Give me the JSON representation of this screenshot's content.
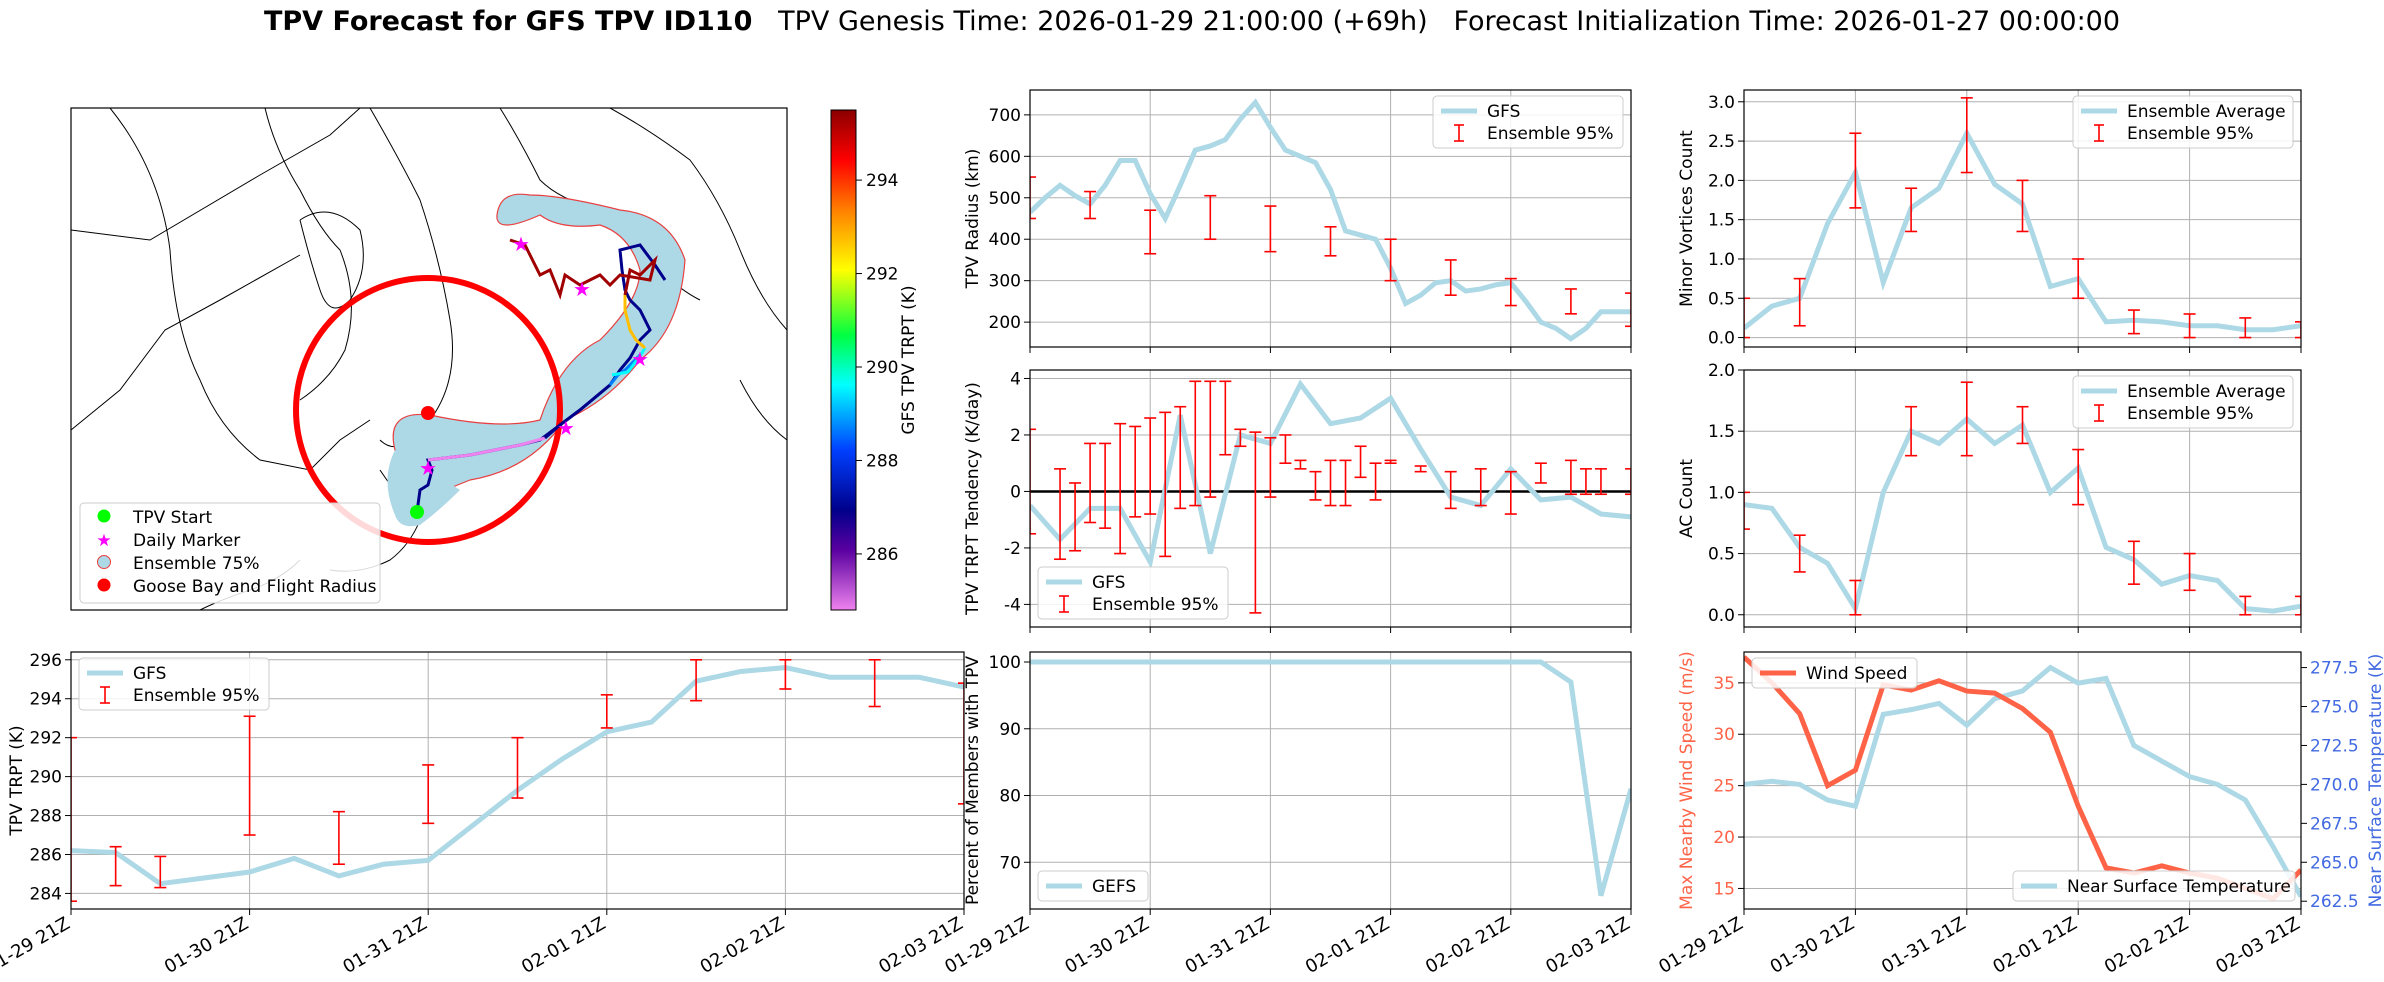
{
  "header": {
    "title_bold": "TPV Forecast for GFS TPV ID110",
    "genesis": "TPV Genesis Time: 2026-01-29 21:00:00 (+69h)",
    "init": "Forecast Initialization Time: 2026-01-27 00:00:00"
  },
  "colors": {
    "gfs": "#add8e6",
    "err": "#ff0000",
    "wind": "#ff6347",
    "temp": "#4169e1",
    "shade": "#add8e6"
  },
  "map": {
    "legend": [
      "TPV Start",
      "Daily Marker",
      "Ensemble 75%",
      "Goose Bay and Flight Radius"
    ],
    "colorbar": {
      "label": "GFS TPV TRPT (K)",
      "range": [
        284.8,
        295.5
      ],
      "ticks": [
        286,
        288,
        290,
        292,
        294
      ]
    }
  },
  "xticks": [
    "01-29 21Z",
    "01-30 21Z",
    "01-31 21Z",
    "02-01 21Z",
    "02-02 21Z",
    "02-03 21Z"
  ],
  "chart_data": [
    {
      "id": "radius",
      "type": "line",
      "ylabel": "TPV Radius (km)",
      "ylim": [
        140,
        760
      ],
      "yticks": [
        200,
        300,
        400,
        500,
        600,
        700
      ],
      "series_name": "GFS",
      "err_name": "Ensemble 95%",
      "x": [
        0,
        0.125,
        0.25,
        0.375,
        0.5,
        0.625,
        0.75,
        0.875,
        1,
        1.125,
        1.25,
        1.375,
        1.5,
        1.625,
        1.75,
        1.875,
        2,
        2.125,
        2.25,
        2.375,
        2.5,
        2.625,
        2.75,
        2.875,
        3,
        3.125,
        3.25,
        3.375,
        3.5,
        3.625,
        3.75,
        3.875,
        4,
        4.125,
        4.25,
        4.375,
        4.5,
        4.625,
        4.75,
        4.875,
        5
      ],
      "values": [
        465,
        500,
        530,
        505,
        485,
        530,
        590,
        590,
        510,
        450,
        530,
        615,
        625,
        640,
        690,
        730,
        670,
        615,
        600,
        585,
        520,
        420,
        410,
        400,
        330,
        245,
        265,
        295,
        300,
        275,
        280,
        290,
        295,
        250,
        200,
        185,
        160,
        185,
        225,
        225,
        225
      ],
      "err_x": [
        0,
        0.5,
        1,
        1.5,
        2,
        2.5,
        3,
        3.5,
        4,
        4.5,
        5
      ],
      "err_low": [
        450,
        450,
        365,
        400,
        370,
        360,
        300,
        265,
        240,
        220,
        190
      ],
      "err_high": [
        550,
        515,
        470,
        505,
        480,
        430,
        400,
        350,
        305,
        280,
        270
      ],
      "hline": null,
      "legend": "upper right"
    },
    {
      "id": "tendency",
      "type": "line",
      "ylabel": "TPV TRPT Tendency (K/day)",
      "ylim": [
        -4.8,
        4.3
      ],
      "yticks": [
        -4,
        -2,
        0,
        2,
        4
      ],
      "series_name": "GFS",
      "err_name": "Ensemble 95%",
      "x": [
        0,
        0.25,
        0.5,
        0.75,
        1,
        1.25,
        1.5,
        1.75,
        2,
        2.25,
        2.5,
        2.75,
        3,
        3.25,
        3.5,
        3.75,
        4,
        4.25,
        4.5,
        4.75,
        5
      ],
      "values": [
        -0.5,
        -1.7,
        -0.6,
        -0.6,
        -2.5,
        2.7,
        -2.2,
        2.0,
        1.7,
        3.8,
        2.4,
        2.6,
        3.3,
        1.5,
        -0.2,
        -0.5,
        0.8,
        -0.3,
        -0.2,
        -0.8,
        -0.9
      ],
      "err_x": [
        0,
        0.25,
        0.375,
        0.5,
        0.625,
        0.75,
        0.875,
        1,
        1.125,
        1.25,
        1.375,
        1.5,
        1.625,
        1.75,
        1.875,
        2,
        2.125,
        2.25,
        2.375,
        2.5,
        2.625,
        2.75,
        2.875,
        3,
        3.25,
        3.5,
        3.75,
        4,
        4.25,
        4.5,
        4.625,
        4.75,
        5
      ],
      "err_low": [
        -1.5,
        -2.4,
        -2.1,
        -1.1,
        -1.3,
        -2.2,
        -0.9,
        -0.8,
        -2.3,
        -0.6,
        -0.5,
        -0.2,
        1.3,
        1.6,
        -4.3,
        -0.2,
        1.0,
        0.8,
        -0.3,
        -0.5,
        -0.5,
        0.5,
        -0.3,
        1.0,
        0.7,
        -0.6,
        -0.5,
        -0.8,
        0.3,
        -0.1,
        -0.1,
        -0.1,
        -0.1
      ],
      "err_high": [
        2.2,
        0.8,
        0.3,
        1.7,
        1.7,
        2.4,
        2.3,
        2.6,
        2.8,
        3.0,
        3.9,
        3.9,
        3.9,
        2.2,
        2.1,
        1.9,
        2.0,
        1.1,
        0.7,
        1.1,
        1.1,
        1.6,
        1.0,
        1.1,
        0.9,
        0.7,
        0.8,
        0.7,
        1.0,
        1.1,
        0.8,
        0.8,
        0.8
      ],
      "hline": 0,
      "legend": "lower left"
    },
    {
      "id": "trpt",
      "type": "line",
      "ylabel": "TPV TRPT (K)",
      "ylim": [
        283.2,
        296.4
      ],
      "yticks": [
        284,
        286,
        288,
        290,
        292,
        294,
        296
      ],
      "series_name": "GFS",
      "err_name": "Ensemble 95%",
      "x": [
        0,
        0.25,
        0.5,
        0.75,
        1,
        1.25,
        1.5,
        1.75,
        2,
        2.25,
        2.5,
        2.75,
        3,
        3.25,
        3.5,
        3.75,
        4,
        4.25,
        4.5,
        4.75,
        5
      ],
      "values": [
        286.2,
        286.1,
        284.5,
        284.8,
        285.1,
        285.8,
        284.9,
        285.5,
        285.7,
        287.5,
        289.3,
        290.9,
        292.3,
        292.8,
        294.9,
        295.4,
        295.6,
        295.1,
        295.1,
        295.1,
        294.6
      ],
      "err_x": [
        0,
        0.25,
        0.5,
        1,
        1.5,
        2,
        2.5,
        3,
        3.5,
        4,
        4.5,
        5
      ],
      "err_low": [
        283.6,
        284.4,
        284.3,
        287.0,
        285.5,
        287.6,
        288.9,
        292.5,
        293.9,
        294.5,
        293.6,
        288.6
      ],
      "err_high": [
        292.0,
        286.4,
        285.9,
        293.1,
        288.2,
        290.6,
        292.0,
        294.2,
        296.0,
        296.0,
        296.0,
        294.8
      ],
      "hline": null,
      "legend": "upper left"
    },
    {
      "id": "members",
      "type": "line",
      "ylabel": "Percent of Members with TPV",
      "ylim": [
        63,
        101.5
      ],
      "yticks": [
        70,
        80,
        90,
        100
      ],
      "series_name": "GEFS",
      "err_name": null,
      "x": [
        0,
        0.5,
        1,
        1.5,
        2,
        2.5,
        3,
        3.5,
        3.875,
        4,
        4.25,
        4.5,
        4.75,
        5
      ],
      "values": [
        100,
        100,
        100,
        100,
        100,
        100,
        100,
        100,
        100,
        100,
        100,
        97,
        65,
        81
      ],
      "hline": null,
      "legend": "lower left"
    },
    {
      "id": "minor",
      "type": "line",
      "ylabel": "Minor Vortices Count",
      "ylim": [
        -0.12,
        3.15
      ],
      "yticks": [
        0.0,
        0.5,
        1.0,
        1.5,
        2.0,
        2.5,
        3.0
      ],
      "series_name": "Ensemble Average",
      "err_name": "Ensemble 95%",
      "x": [
        0,
        0.25,
        0.5,
        0.75,
        1,
        1.25,
        1.5,
        1.75,
        2,
        2.25,
        2.5,
        2.75,
        3,
        3.25,
        3.5,
        3.75,
        4,
        4.25,
        4.5,
        4.75,
        5
      ],
      "values": [
        0.12,
        0.4,
        0.5,
        1.45,
        2.1,
        0.7,
        1.65,
        1.9,
        2.6,
        1.95,
        1.7,
        0.65,
        0.75,
        0.2,
        0.22,
        0.2,
        0.15,
        0.15,
        0.1,
        0.1,
        0.15
      ],
      "err_x": [
        0,
        0.5,
        1,
        1.5,
        2,
        2.5,
        3,
        3.5,
        4,
        4.5,
        5
      ],
      "err_low": [
        0.0,
        0.15,
        1.65,
        1.35,
        2.1,
        1.35,
        0.5,
        0.05,
        0.0,
        0.0,
        0.0
      ],
      "err_high": [
        0.5,
        0.75,
        2.6,
        1.9,
        3.05,
        2.0,
        1.0,
        0.35,
        0.3,
        0.25,
        0.2
      ],
      "hline": null,
      "legend": "upper right"
    },
    {
      "id": "ac",
      "type": "line",
      "ylabel": "AC Count",
      "ylim": [
        -0.1,
        2.0
      ],
      "yticks": [
        0.0,
        0.5,
        1.0,
        1.5,
        2.0
      ],
      "series_name": "Ensemble Average",
      "err_name": "Ensemble 95%",
      "x": [
        0,
        0.25,
        0.5,
        0.75,
        1,
        1.25,
        1.5,
        1.75,
        2,
        2.25,
        2.5,
        2.75,
        3,
        3.25,
        3.5,
        3.75,
        4,
        4.25,
        4.5,
        4.75,
        5
      ],
      "values": [
        0.9,
        0.87,
        0.55,
        0.42,
        0.05,
        1.0,
        1.5,
        1.4,
        1.6,
        1.4,
        1.55,
        1.0,
        1.2,
        0.55,
        0.45,
        0.25,
        0.32,
        0.28,
        0.05,
        0.03,
        0.07
      ],
      "err_x": [
        0,
        0.5,
        1,
        1.5,
        2,
        2.5,
        3,
        3.5,
        4,
        4.5,
        5
      ],
      "err_low": [
        0.7,
        0.35,
        0.0,
        1.3,
        1.3,
        1.4,
        0.9,
        0.25,
        0.2,
        0.0,
        0.0
      ],
      "err_high": [
        1.0,
        0.65,
        0.28,
        1.7,
        1.9,
        1.7,
        1.35,
        0.6,
        0.5,
        0.15,
        0.15
      ],
      "hline": null,
      "legend": "upper right"
    },
    {
      "id": "wind",
      "type": "dual_line",
      "ylabel": "Max Nearby Wind Speed (m/s)",
      "ylim": [
        13,
        38
      ],
      "yticks": [
        15,
        20,
        25,
        30,
        35
      ],
      "series_name": "Wind Speed",
      "x": [
        0,
        0.25,
        0.5,
        0.75,
        1,
        1.25,
        1.5,
        1.75,
        2,
        2.25,
        2.5,
        2.75,
        3,
        3.25,
        3.5,
        3.75,
        4,
        4.25,
        4.5,
        4.75,
        5
      ],
      "values": [
        37.5,
        35.0,
        32.0,
        25.0,
        26.5,
        34.8,
        34.3,
        35.2,
        34.2,
        34.0,
        32.5,
        30.2,
        23.0,
        17.0,
        16.5,
        17.2,
        16.5,
        16.0,
        15.0,
        14.0,
        16.8
      ],
      "ylabel2": "Near Surface Temperature (K)",
      "ylim2": [
        262,
        278.5
      ],
      "yticks2": [
        262.5,
        265.0,
        267.5,
        270.0,
        272.5,
        275.0,
        277.5
      ],
      "series2_name": "Near Surface Temperature",
      "values2": [
        270.0,
        270.2,
        270.0,
        269.0,
        268.6,
        274.5,
        274.8,
        275.2,
        273.8,
        275.5,
        276.0,
        277.5,
        276.5,
        276.8,
        272.5,
        271.5,
        270.5,
        270.0,
        269.0,
        266.0,
        262.8
      ],
      "legend": "upper left",
      "legend2": "lower right"
    }
  ]
}
